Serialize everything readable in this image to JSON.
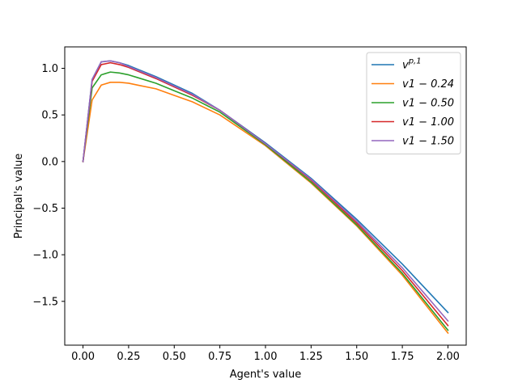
{
  "chart_data": {
    "type": "line",
    "title": "",
    "xlabel": "Agent's value",
    "ylabel": "Principal's value",
    "xlim": [
      -0.1,
      2.1
    ],
    "ylim": [
      -1.97,
      1.23
    ],
    "xticks": [
      0.0,
      0.25,
      0.5,
      0.75,
      1.0,
      1.25,
      1.5,
      1.75,
      2.0
    ],
    "xtick_labels": [
      "0.00",
      "0.25",
      "0.50",
      "0.75",
      "1.00",
      "1.25",
      "1.50",
      "1.75",
      "2.00"
    ],
    "yticks": [
      -1.5,
      -1.0,
      -0.5,
      0.0,
      0.5,
      1.0
    ],
    "ytick_labels": [
      "−1.5",
      "−1.0",
      "−0.5",
      "0.0",
      "0.5",
      "1.0"
    ],
    "grid": false,
    "legend_position": "top-right",
    "x": [
      0.0,
      0.05,
      0.1,
      0.15,
      0.2,
      0.25,
      0.3,
      0.4,
      0.5,
      0.6,
      0.75,
      1.0,
      1.25,
      1.5,
      1.75,
      2.0
    ],
    "series": [
      {
        "name": "v^{p,1}",
        "color": "#1f77b4",
        "values": [
          0.0,
          0.88,
          1.07,
          1.08,
          1.06,
          1.03,
          0.99,
          0.91,
          0.82,
          0.73,
          0.55,
          0.2,
          -0.18,
          -0.62,
          -1.1,
          -1.62
        ]
      },
      {
        "name": "v1 − 0.24",
        "color": "#ff7f0e",
        "values": [
          0.0,
          0.66,
          0.82,
          0.85,
          0.85,
          0.84,
          0.82,
          0.78,
          0.71,
          0.64,
          0.5,
          0.17,
          -0.23,
          -0.69,
          -1.22,
          -1.84
        ]
      },
      {
        "name": "v1 − 0.50",
        "color": "#2ca02c",
        "values": [
          0.0,
          0.79,
          0.93,
          0.96,
          0.95,
          0.93,
          0.9,
          0.84,
          0.76,
          0.68,
          0.53,
          0.18,
          -0.22,
          -0.68,
          -1.2,
          -1.81
        ]
      },
      {
        "name": "v1 − 1.00",
        "color": "#d62728",
        "values": [
          0.0,
          0.86,
          1.04,
          1.06,
          1.04,
          1.01,
          0.97,
          0.89,
          0.8,
          0.71,
          0.55,
          0.19,
          -0.2,
          -0.66,
          -1.17,
          -1.76
        ]
      },
      {
        "name": "v1 − 1.50",
        "color": "#9467bd",
        "values": [
          0.0,
          0.88,
          1.07,
          1.08,
          1.06,
          1.02,
          0.98,
          0.9,
          0.81,
          0.72,
          0.55,
          0.19,
          -0.19,
          -0.64,
          -1.14,
          -1.71
        ]
      }
    ]
  }
}
